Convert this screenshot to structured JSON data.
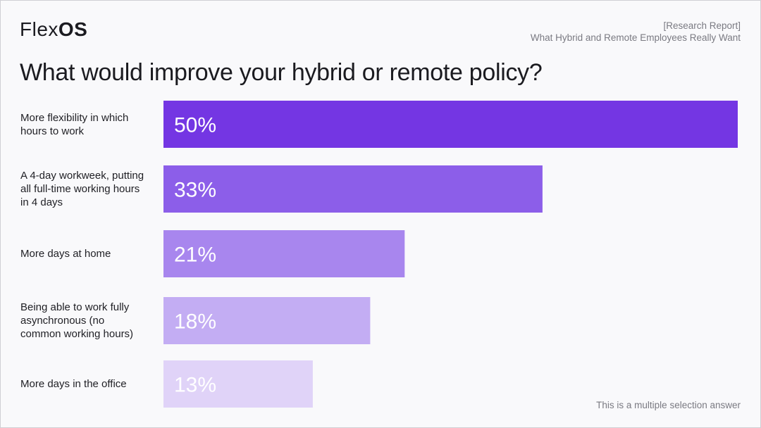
{
  "brand": {
    "name_light": "Flex",
    "name_bold": "OS"
  },
  "report": {
    "tag": "[Research Report]",
    "subtitle": "What Hybrid and Remote Employees Really Want"
  },
  "footnote": "This is a multiple selection answer",
  "chart_data": {
    "type": "bar",
    "orientation": "horizontal",
    "title": "What would improve your hybrid or remote policy?",
    "categories": [
      "More flexibility in which hours to work",
      "A 4-day workweek, putting all full-time working hours in 4 days",
      "More days at home",
      "Being able to work fully asynchronous (no common working hours)",
      "More days in the office"
    ],
    "values": [
      50,
      33,
      21,
      18,
      13
    ],
    "value_labels": [
      "50%",
      "33%",
      "21%",
      "18%",
      "13%"
    ],
    "xlim": [
      0,
      50
    ],
    "grid": false,
    "legend": "none",
    "colors": [
      "#7436e3",
      "#8c5ee9",
      "#a886ee",
      "#c3adf3",
      "#e0d3f8"
    ],
    "label_colors": [
      "#ffffff",
      "#ffffff",
      "#ffffff",
      "#ffffff",
      "#ffffff"
    ]
  }
}
